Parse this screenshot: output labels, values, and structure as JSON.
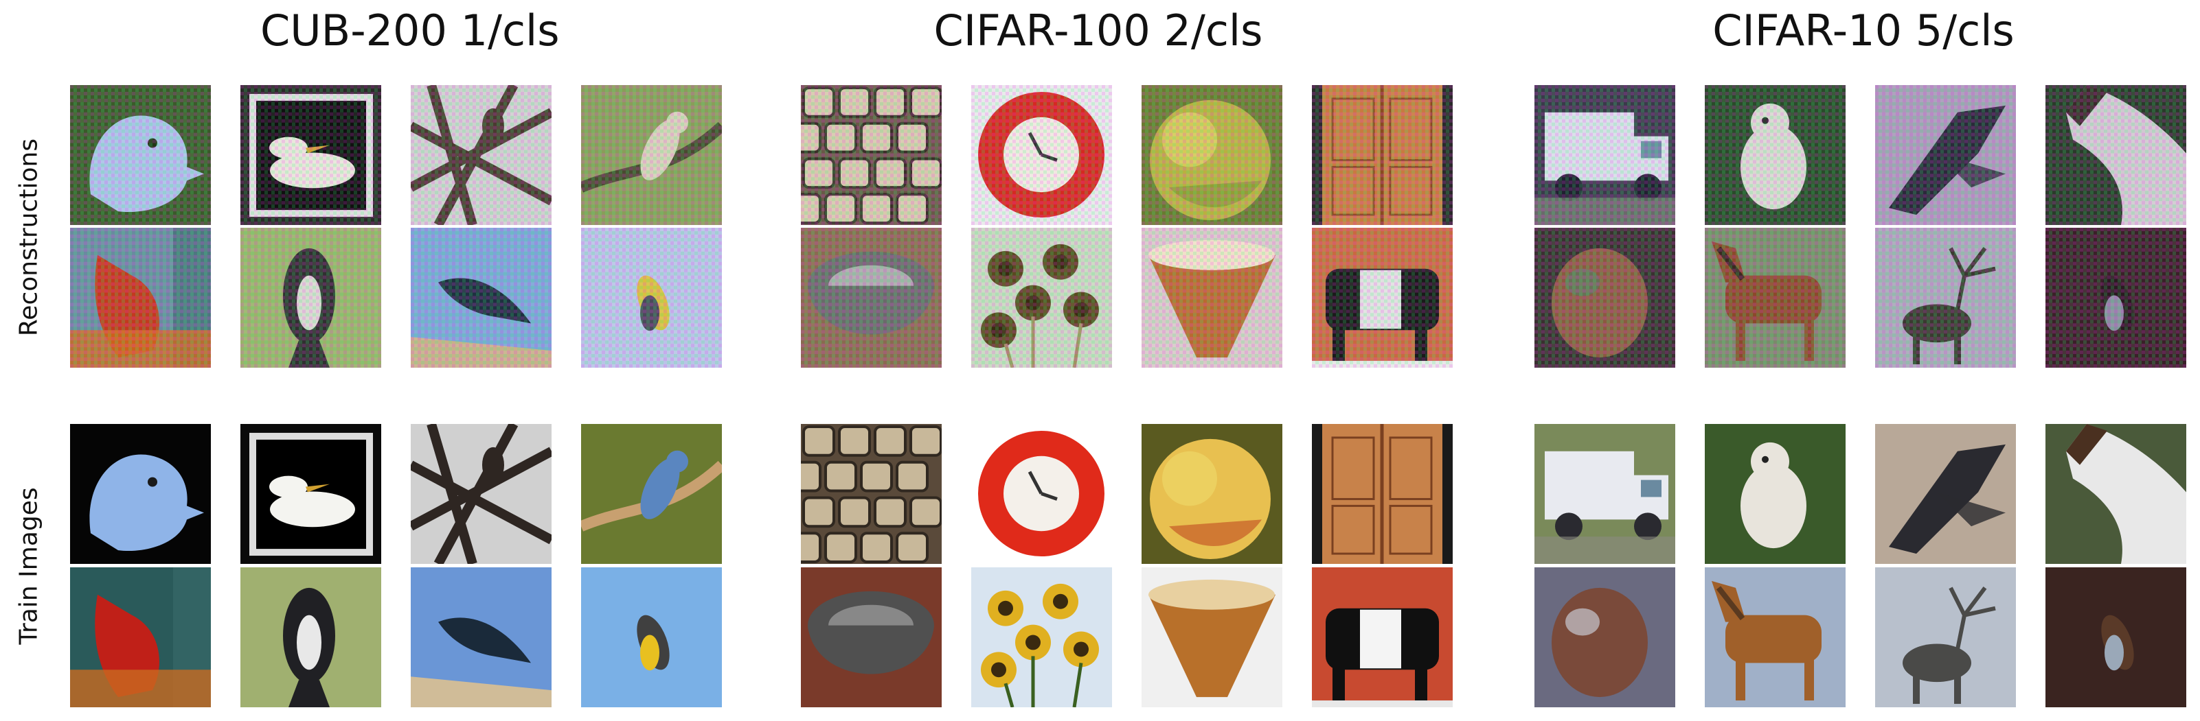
{
  "panels": [
    {
      "title": "CUB-200 1/cls",
      "recon": [
        {
          "subject": "blue bird head",
          "bg": "#3b5a2a",
          "c1": "#a9c2e6",
          "c2": "#233516",
          "shape": "head",
          "noise": true
        },
        {
          "subject": "waterbird on dark water",
          "bg": "#2a2a28",
          "c1": "#e8e4da",
          "c2": "#101010",
          "shape": "framed",
          "noise": true
        },
        {
          "subject": "branches",
          "bg": "#cfcfcf",
          "c1": "#4a3a30",
          "c2": "#9a9a9a",
          "shape": "branches",
          "noise": true
        },
        {
          "subject": "bird on branch",
          "bg": "#8a9c5a",
          "c1": "#d6d0b8",
          "c2": "#4a4a30",
          "shape": "perch",
          "noise": true
        },
        {
          "subject": "cardinal",
          "bg": "#6a8aa0",
          "c1": "#c23a1e",
          "c2": "#d06a1c",
          "shape": "cardinal",
          "noise": true
        },
        {
          "subject": "dark bird on green",
          "bg": "#9ab26a",
          "c1": "#303030",
          "c2": "#d8d8d0",
          "shape": "perched",
          "noise": true
        },
        {
          "subject": "bird on twigs",
          "bg": "#7aa6d6",
          "c1": "#1e3040",
          "c2": "#c8b08a",
          "shape": "flying",
          "noise": true
        },
        {
          "subject": "small yellow bird",
          "bg": "#b8c4e6",
          "c1": "#4a4a5a",
          "c2": "#d8c040",
          "shape": "small",
          "noise": true
        }
      ],
      "train": [
        {
          "subject": "blue bird head",
          "bg": "#050505",
          "c1": "#8fb4e8",
          "c2": "#1a1a1a",
          "shape": "head",
          "noise": false
        },
        {
          "subject": "waterbird on dark water",
          "bg": "#0a0a0a",
          "c1": "#f4f4f0",
          "c2": "#000000",
          "shape": "framed",
          "noise": false
        },
        {
          "subject": "branches",
          "bg": "#d0d0d0",
          "c1": "#2e2622",
          "c2": "#a0a0a0",
          "shape": "branches",
          "noise": false
        },
        {
          "subject": "blue jay on branch",
          "bg": "#6a7a30",
          "c1": "#5a86c0",
          "c2": "#c8a070",
          "shape": "perch",
          "noise": false
        },
        {
          "subject": "cardinal",
          "bg": "#2a5a5a",
          "c1": "#c02018",
          "c2": "#c86a20",
          "shape": "cardinal",
          "noise": false
        },
        {
          "subject": "magpie",
          "bg": "#a0b070",
          "c1": "#202024",
          "c2": "#e8e8e8",
          "shape": "perched",
          "noise": false
        },
        {
          "subject": "starling on twigs",
          "bg": "#6a96d6",
          "c1": "#1a2a3a",
          "c2": "#d0bc98",
          "shape": "flying",
          "noise": false
        },
        {
          "subject": "yellow kingbird",
          "bg": "#7ab0e6",
          "c1": "#e8c020",
          "c2": "#404040",
          "shape": "small",
          "noise": false
        }
      ]
    },
    {
      "title": "CIFAR-100 2/cls",
      "recon": [
        {
          "subject": "keyboard",
          "bg": "#6a5848",
          "c1": "#d6c8ac",
          "c2": "#3a3028",
          "shape": "keys",
          "noise": true
        },
        {
          "subject": "clock",
          "bg": "#e8e8ea",
          "c1": "#d42a20",
          "c2": "#f0e8e0",
          "shape": "clock",
          "noise": true
        },
        {
          "subject": "apple",
          "bg": "#6a7a30",
          "c1": "#b8b040",
          "c2": "#7a9030",
          "shape": "apple",
          "noise": true
        },
        {
          "subject": "wardrobe",
          "bg": "#2a2a2a",
          "c1": "#c87a40",
          "c2": "#8a4a20",
          "shape": "wardrobe",
          "noise": true
        },
        {
          "subject": "bowl",
          "bg": "#8a6a50",
          "c1": "#6a6a6a",
          "c2": "#c8c8c8",
          "shape": "bowl",
          "noise": true
        },
        {
          "subject": "sunflowers",
          "bg": "#c8d8c0",
          "c1": "#5a4a20",
          "c2": "#a09060",
          "shape": "flowers",
          "noise": true
        },
        {
          "subject": "bowl",
          "bg": "#d8c8c8",
          "c1": "#b86a30",
          "c2": "#f0e0c8",
          "shape": "cone",
          "noise": true
        },
        {
          "subject": "cattle",
          "bg": "#c86a40",
          "c1": "#1a1a1a",
          "c2": "#e0e0e0",
          "shape": "cow",
          "noise": true
        }
      ],
      "train": [
        {
          "subject": "keyboard",
          "bg": "#5a4a3a",
          "c1": "#c8b89a",
          "c2": "#302820",
          "shape": "keys",
          "noise": false
        },
        {
          "subject": "clock",
          "bg": "#ffffff",
          "c1": "#e02a1a",
          "c2": "#f4f0ea",
          "shape": "clock",
          "noise": false
        },
        {
          "subject": "apple",
          "bg": "#5a5a20",
          "c1": "#e8c050",
          "c2": "#c04a20",
          "shape": "apple",
          "noise": false
        },
        {
          "subject": "wardrobe",
          "bg": "#1a1a1a",
          "c1": "#c8824a",
          "c2": "#7a4020",
          "shape": "wardrobe",
          "noise": false
        },
        {
          "subject": "bowl",
          "bg": "#7a3a2a",
          "c1": "#505050",
          "c2": "#a0a0a0",
          "shape": "bowl",
          "noise": false
        },
        {
          "subject": "sunflowers",
          "bg": "#d8e4f0",
          "c1": "#e0b020",
          "c2": "#3a6020",
          "shape": "flowers",
          "noise": false
        },
        {
          "subject": "bowl",
          "bg": "#f0f0f0",
          "c1": "#b8702a",
          "c2": "#e8d0a0",
          "shape": "cone",
          "noise": false
        },
        {
          "subject": "cattle",
          "bg": "#c84a30",
          "c1": "#101010",
          "c2": "#f4f4f4",
          "shape": "cow",
          "noise": false
        }
      ]
    },
    {
      "title": "CIFAR-10 5/cls",
      "recon": [
        {
          "subject": "truck",
          "bg": "#3a3a4a",
          "c1": "#d8dce8",
          "c2": "#202030",
          "shape": "truck",
          "noise": true
        },
        {
          "subject": "dog",
          "bg": "#2a4a2a",
          "c1": "#d8d8d0",
          "c2": "#5a7040",
          "shape": "dog",
          "noise": true
        },
        {
          "subject": "airplane",
          "bg": "#a89ab8",
          "c1": "#2a2a3a",
          "c2": "#d8d0e0",
          "shape": "plane",
          "noise": true
        },
        {
          "subject": "horse",
          "bg": "#2a3a2a",
          "c1": "#d0c8d0",
          "c2": "#3a2a2a",
          "shape": "horse",
          "noise": true
        },
        {
          "subject": "animal",
          "bg": "#3a3030",
          "c1": "#8a5a40",
          "c2": "#5a7a60",
          "shape": "blob",
          "noise": true
        },
        {
          "subject": "horse",
          "bg": "#7a8a6a",
          "c1": "#8a4a2a",
          "c2": "#3a2a20",
          "shape": "pony",
          "noise": true
        },
        {
          "subject": "deer",
          "bg": "#a8a8b8",
          "c1": "#3a3a30",
          "c2": "#e0e0e0",
          "shape": "deer",
          "noise": true
        },
        {
          "subject": "cat",
          "bg": "#3a2028",
          "c1": "#8a8aa0",
          "c2": "#2a1a20",
          "shape": "small",
          "noise": true
        }
      ],
      "train": [
        {
          "subject": "truck",
          "bg": "#7a8a5a",
          "c1": "#e8eaf0",
          "c2": "#2a2a30",
          "shape": "truck",
          "noise": false
        },
        {
          "subject": "dog",
          "bg": "#3a5a2a",
          "c1": "#e8e4dc",
          "c2": "#6a8040",
          "shape": "dog",
          "noise": false
        },
        {
          "subject": "airplane",
          "bg": "#b8a898",
          "c1": "#2a2a30",
          "c2": "#d8ccc0",
          "shape": "plane",
          "noise": false
        },
        {
          "subject": "horse",
          "bg": "#4a5a3a",
          "c1": "#e8e8e8",
          "c2": "#4a3020",
          "shape": "horse",
          "noise": false
        },
        {
          "subject": "animal",
          "bg": "#6a6a80",
          "c1": "#7a4a3a",
          "c2": "#c8c8d0",
          "shape": "blob",
          "noise": false
        },
        {
          "subject": "horse",
          "bg": "#a0b0c8",
          "c1": "#a0602a",
          "c2": "#5a3a20",
          "shape": "pony",
          "noise": false
        },
        {
          "subject": "reindeer",
          "bg": "#b8c0cc",
          "c1": "#4a4a48",
          "c2": "#e8e8e8",
          "shape": "deer",
          "noise": false
        },
        {
          "subject": "cat",
          "bg": "#3a2420",
          "c1": "#9aa8b8",
          "c2": "#5a3a28",
          "shape": "small",
          "noise": false
        }
      ]
    }
  ],
  "row_labels": {
    "reconstructions": "Reconstructions",
    "train_images": "Train Images"
  }
}
